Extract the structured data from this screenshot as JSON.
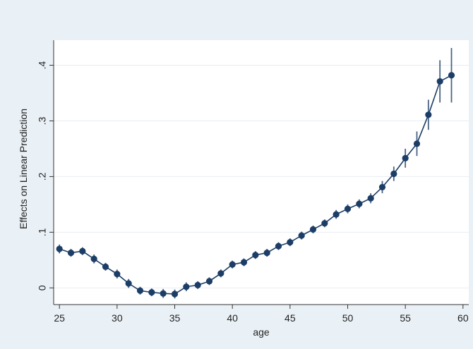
{
  "chart_data": {
    "type": "line",
    "title": "",
    "xlabel": "age",
    "ylabel": "Effects on Linear Prediction",
    "xlim": [
      24.5,
      60.5
    ],
    "ylim": [
      -0.03,
      0.445
    ],
    "x_ticks": [
      25,
      30,
      35,
      40,
      45,
      50,
      55,
      60
    ],
    "x_tick_labels": [
      "25",
      "30",
      "35",
      "40",
      "45",
      "50",
      "55",
      "60"
    ],
    "y_ticks": [
      0,
      0.1,
      0.2,
      0.3,
      0.4
    ],
    "y_tick_labels": [
      "0",
      ".1",
      ".2",
      ".3",
      ".4"
    ],
    "grid": "horizontal",
    "legend": "none",
    "series": [
      {
        "x": [
          25,
          26,
          27,
          28,
          29,
          30,
          31,
          32,
          33,
          34,
          35,
          36,
          37,
          38,
          39,
          40,
          41,
          42,
          43,
          44,
          45,
          46,
          47,
          48,
          49,
          50,
          51,
          52,
          53,
          54,
          55,
          56,
          57,
          58,
          59
        ],
        "values": [
          0.07,
          0.063,
          0.066,
          0.052,
          0.038,
          0.025,
          0.008,
          -0.005,
          -0.008,
          -0.01,
          -0.011,
          0.002,
          0.005,
          0.012,
          0.026,
          0.042,
          0.046,
          0.059,
          0.063,
          0.075,
          0.082,
          0.094,
          0.105,
          0.116,
          0.132,
          0.142,
          0.151,
          0.161,
          0.181,
          0.205,
          0.233,
          0.259,
          0.311,
          0.371,
          0.382
        ],
        "ci_low": [
          0.062,
          0.056,
          0.059,
          0.044,
          0.031,
          0.017,
          0.0,
          -0.012,
          -0.015,
          -0.018,
          -0.019,
          -0.006,
          -0.002,
          0.005,
          0.019,
          0.035,
          0.039,
          0.052,
          0.056,
          0.068,
          0.075,
          0.087,
          0.098,
          0.109,
          0.124,
          0.134,
          0.143,
          0.152,
          0.17,
          0.192,
          0.216,
          0.237,
          0.284,
          0.333,
          0.333
        ],
        "ci_high": [
          0.078,
          0.07,
          0.073,
          0.06,
          0.045,
          0.033,
          0.016,
          0.002,
          -0.001,
          -0.002,
          -0.003,
          0.01,
          0.012,
          0.019,
          0.033,
          0.049,
          0.053,
          0.066,
          0.07,
          0.082,
          0.089,
          0.101,
          0.112,
          0.123,
          0.14,
          0.15,
          0.159,
          0.17,
          0.192,
          0.218,
          0.25,
          0.281,
          0.338,
          0.409,
          0.431
        ]
      }
    ]
  },
  "colors": {
    "outer_background": "#eaf1f6",
    "plot_background": "#ffffff",
    "grid": "#e6edf2",
    "axis": "#333333",
    "series": "#1c3d66"
  }
}
